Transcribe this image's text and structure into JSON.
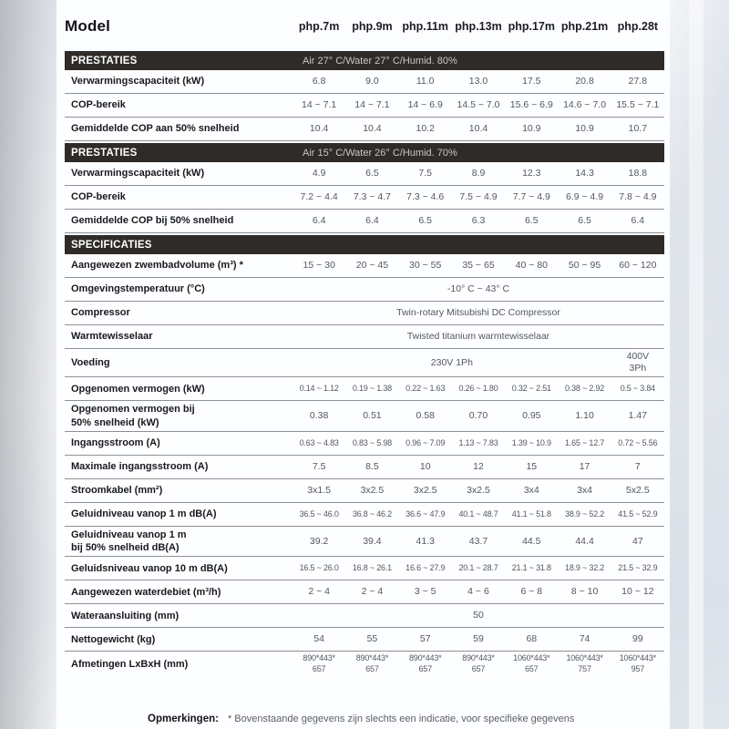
{
  "header": {
    "model_label": "Model",
    "columns": [
      "php.7m",
      "php.9m",
      "php.11m",
      "php.13m",
      "php.17m",
      "php.21m",
      "php.28t"
    ]
  },
  "table": {
    "sections": [
      {
        "bar": {
          "label": "PRESTATIES",
          "condition": "Air 27° C/Water 27° C/Humid. 80%"
        },
        "rows": [
          {
            "label": "Verwarmingscapaciteit (kW)",
            "values": [
              "6.8",
              "9.0",
              "11.0",
              "13.0",
              "17.5",
              "20.8",
              "27.8"
            ]
          },
          {
            "label": "COP-bereik",
            "values": [
              "14 ~ 7.1",
              "14 ~ 7.1",
              "14 ~ 6.9",
              "14.5 ~ 7.0",
              "15.6 ~ 6.9",
              "14.6 ~ 7.0",
              "15.5 ~ 7.1"
            ]
          },
          {
            "label": "Gemiddelde COP aan 50% snelheid",
            "values": [
              "10.4",
              "10.4",
              "10.2",
              "10.4",
              "10.9",
              "10.9",
              "10.7"
            ]
          }
        ]
      },
      {
        "bar": {
          "label": "PRESTATIES",
          "condition": "Air 15° C/Water 26° C/Humid. 70%"
        },
        "rows": [
          {
            "label": "Verwarmingscapaciteit (kW)",
            "values": [
              "4.9",
              "6.5",
              "7.5",
              "8.9",
              "12.3",
              "14.3",
              "18.8"
            ]
          },
          {
            "label": "COP-bereik",
            "values": [
              "7.2 ~ 4.4",
              "7.3 ~ 4.7",
              "7.3 ~ 4.6",
              "7.5 ~ 4.9",
              "7.7 ~ 4.9",
              "6.9 ~ 4.9",
              "7.8 ~ 4.9"
            ]
          },
          {
            "label": "Gemiddelde COP bij 50% snelheid",
            "values": [
              "6.4",
              "6.4",
              "6.5",
              "6.3",
              "6.5",
              "6.5",
              "6.4"
            ]
          }
        ]
      },
      {
        "bar": {
          "label": "SPECIFICATIES",
          "condition": ""
        },
        "rows": [
          {
            "label": "Aangewezen zwembadvolume (m³) *",
            "values": [
              "15 ~ 30",
              "20 ~ 45",
              "30 ~ 55",
              "35 ~ 65",
              "40 ~ 80",
              "50 ~ 95",
              "60 ~ 120"
            ]
          },
          {
            "label": "Omgevingstemperatuur (°C)",
            "span": "-10° C ~ 43° C"
          },
          {
            "label": "Compressor",
            "span": "Twin-rotary Mitsubishi DC Compressor"
          },
          {
            "label": "Warmtewisselaar",
            "span": "Twisted titanium warmtewisselaar"
          },
          {
            "label": "Voeding",
            "span6": "230V 1Ph",
            "last": "400V\n3Ph"
          },
          {
            "label": "Opgenomen vermogen (kW)",
            "small": true,
            "values": [
              "0.14 ~ 1.12",
              "0.19 ~ 1.38",
              "0.22 ~ 1.63",
              "0.26 ~ 1.80",
              "0.32 ~ 2.51",
              "0.38 ~ 2.92",
              "0.5 ~ 3.84"
            ]
          },
          {
            "label": "Opgenomen vermogen bij\n50% snelheid (kW)",
            "values": [
              "0.38",
              "0.51",
              "0.58",
              "0.70",
              "0.95",
              "1.10",
              "1.47"
            ]
          },
          {
            "label": "Ingangsstroom (A)",
            "small": true,
            "values": [
              "0.63 ~ 4.83",
              "0.83 ~ 5.98",
              "0.96 ~ 7.09",
              "1.13 ~ 7.83",
              "1.39 ~ 10.9",
              "1.65 ~ 12.7",
              "0.72 ~ 5.56"
            ]
          },
          {
            "label": "Maximale ingangsstroom (A)",
            "values": [
              "7.5",
              "8.5",
              "10",
              "12",
              "15",
              "17",
              "7"
            ]
          },
          {
            "label": "Stroomkabel (mm²)",
            "values": [
              "3x1.5",
              "3x2.5",
              "3x2.5",
              "3x2.5",
              "3x4",
              "3x4",
              "5x2.5"
            ]
          },
          {
            "label": "Geluidniveau vanop 1 m dB(A)",
            "small": true,
            "values": [
              "36.5 ~ 46.0",
              "36.8 ~ 46.2",
              "36.6 ~ 47.9",
              "40.1 ~ 48.7",
              "41.1 ~ 51.8",
              "38.9 ~ 52.2",
              "41.5 ~ 52.9"
            ]
          },
          {
            "label": "Geluidniveau vanop 1 m\nbij 50% snelheid dB(A)",
            "values": [
              "39.2",
              "39.4",
              "41.3",
              "43.7",
              "44.5",
              "44.4",
              "47"
            ]
          },
          {
            "label": "Geluidsniveau vanop 10 m dB(A)",
            "small": true,
            "values": [
              "16.5 ~ 26.0",
              "16.8 ~ 26.1",
              "16.6 ~ 27.9",
              "20.1 ~ 28.7",
              "21.1 ~ 31.8",
              "18.9 ~ 32.2",
              "21.5 ~ 32.9"
            ]
          },
          {
            "label": "Aangewezen waterdebiet (m³/h)",
            "values": [
              "2 ~ 4",
              "2 ~ 4",
              "3 ~ 5",
              "4 ~ 6",
              "6 ~ 8",
              "8 ~ 10",
              "10 ~ 12"
            ]
          },
          {
            "label": "Wateraansluiting (mm)",
            "span": "50"
          },
          {
            "label": "Nettogewicht (kg)",
            "values": [
              "54",
              "55",
              "57",
              "59",
              "68",
              "74",
              "99"
            ]
          },
          {
            "label": "Afmetingen LxBxH (mm)",
            "small": true,
            "values": [
              "890*443*\n657",
              "890*443*\n657",
              "890*443*\n657",
              "890*443*\n657",
              "1060*443*\n657",
              "1060*443*\n757",
              "1060*443*\n957"
            ]
          }
        ]
      }
    ]
  },
  "footer": {
    "label": "Opmerkingen:",
    "note": "* Bovenstaande gegevens zijn slechts een indicatie, voor specifieke gegevens"
  },
  "colors": {
    "section_bar": "#2e2b29",
    "label_text": "#17191d",
    "value_text": "#53575d",
    "separator": "#8e9196"
  }
}
